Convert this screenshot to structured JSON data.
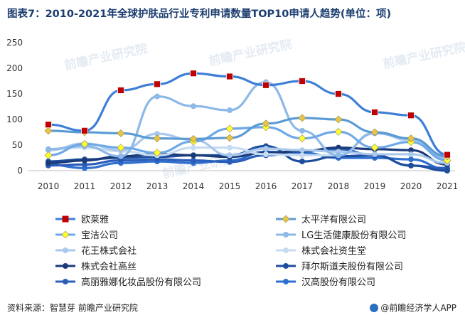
{
  "title": "图表7：2010-2021年全球护肤品行业专利申请数量TOP10申请人趋势(单位：项)",
  "source": "资料来源：智慧芽 前瞻产业研究院",
  "brand": "@前瞻经济学人APP",
  "watermark": "前瞻产业研究院",
  "chart_data": {
    "type": "line",
    "x": [
      "2010",
      "2011",
      "2012",
      "2013",
      "2014",
      "2015",
      "2016",
      "2017",
      "2018",
      "2019",
      "2020",
      "2021"
    ],
    "ylim": [
      0,
      250
    ],
    "yticks": [
      0,
      50,
      100,
      150,
      200,
      250
    ],
    "legend_position": "bottom",
    "grid": false,
    "series": [
      {
        "name": "欧莱雅",
        "color": "#3d7fd6",
        "marker": "square",
        "marker_color": "#c00000",
        "values": [
          90,
          78,
          157,
          169,
          190,
          184,
          167,
          175,
          150,
          114,
          108,
          31
        ]
      },
      {
        "name": "太平洋有限公司",
        "color": "#5b9bd5",
        "marker": "diamond",
        "marker_color": "#e8c547",
        "values": [
          78,
          75,
          73,
          63,
          62,
          64,
          92,
          103,
          100,
          75,
          63,
          28
        ]
      },
      {
        "name": "宝洁公司",
        "color": "#6fa8e8",
        "marker": "diamond",
        "marker_color": "#ffff33",
        "values": [
          30,
          52,
          45,
          35,
          57,
          82,
          85,
          63,
          76,
          45,
          56,
          20
        ]
      },
      {
        "name": "LG生活健康股份有限公司",
        "color": "#8db8e8",
        "marker": "circle",
        "marker_color": "#8db8e8",
        "values": [
          42,
          48,
          28,
          145,
          126,
          118,
          173,
          78,
          30,
          73,
          62,
          25
        ]
      },
      {
        "name": "花王株式会社",
        "color": "#a9c8ec",
        "marker": "circle",
        "marker_color": "#a9c8ec",
        "values": [
          40,
          53,
          40,
          72,
          60,
          30,
          43,
          40,
          37,
          32,
          32,
          15
        ]
      },
      {
        "name": "株式会社资生堂",
        "color": "#c6dcf3",
        "marker": "circle",
        "marker_color": "#c6dcf3",
        "values": [
          42,
          45,
          38,
          30,
          45,
          45,
          32,
          30,
          30,
          75,
          58,
          22
        ]
      },
      {
        "name": "株式会社高丝",
        "color": "#1a3a78",
        "marker": "circle",
        "marker_color": "#1a3a78",
        "values": [
          15,
          20,
          28,
          33,
          30,
          27,
          35,
          38,
          45,
          42,
          40,
          12
        ]
      },
      {
        "name": "拜尔斯道夫股份有限公司",
        "color": "#1d4e9e",
        "marker": "circle",
        "marker_color": "#1d4e9e",
        "values": [
          18,
          22,
          25,
          27,
          30,
          30,
          48,
          18,
          28,
          30,
          10,
          0
        ]
      },
      {
        "name": "高丽雅娜化妆品股份有限公司",
        "color": "#2a5db8",
        "marker": "circle",
        "marker_color": "#2a5db8",
        "values": [
          10,
          12,
          20,
          22,
          20,
          17,
          30,
          38,
          42,
          30,
          10,
          5
        ]
      },
      {
        "name": "汉高股份有限公司",
        "color": "#2f6fd0",
        "marker": "circle",
        "marker_color": "#2f6fd0",
        "values": [
          12,
          5,
          15,
          18,
          15,
          20,
          37,
          35,
          25,
          25,
          22,
          3
        ]
      }
    ]
  }
}
